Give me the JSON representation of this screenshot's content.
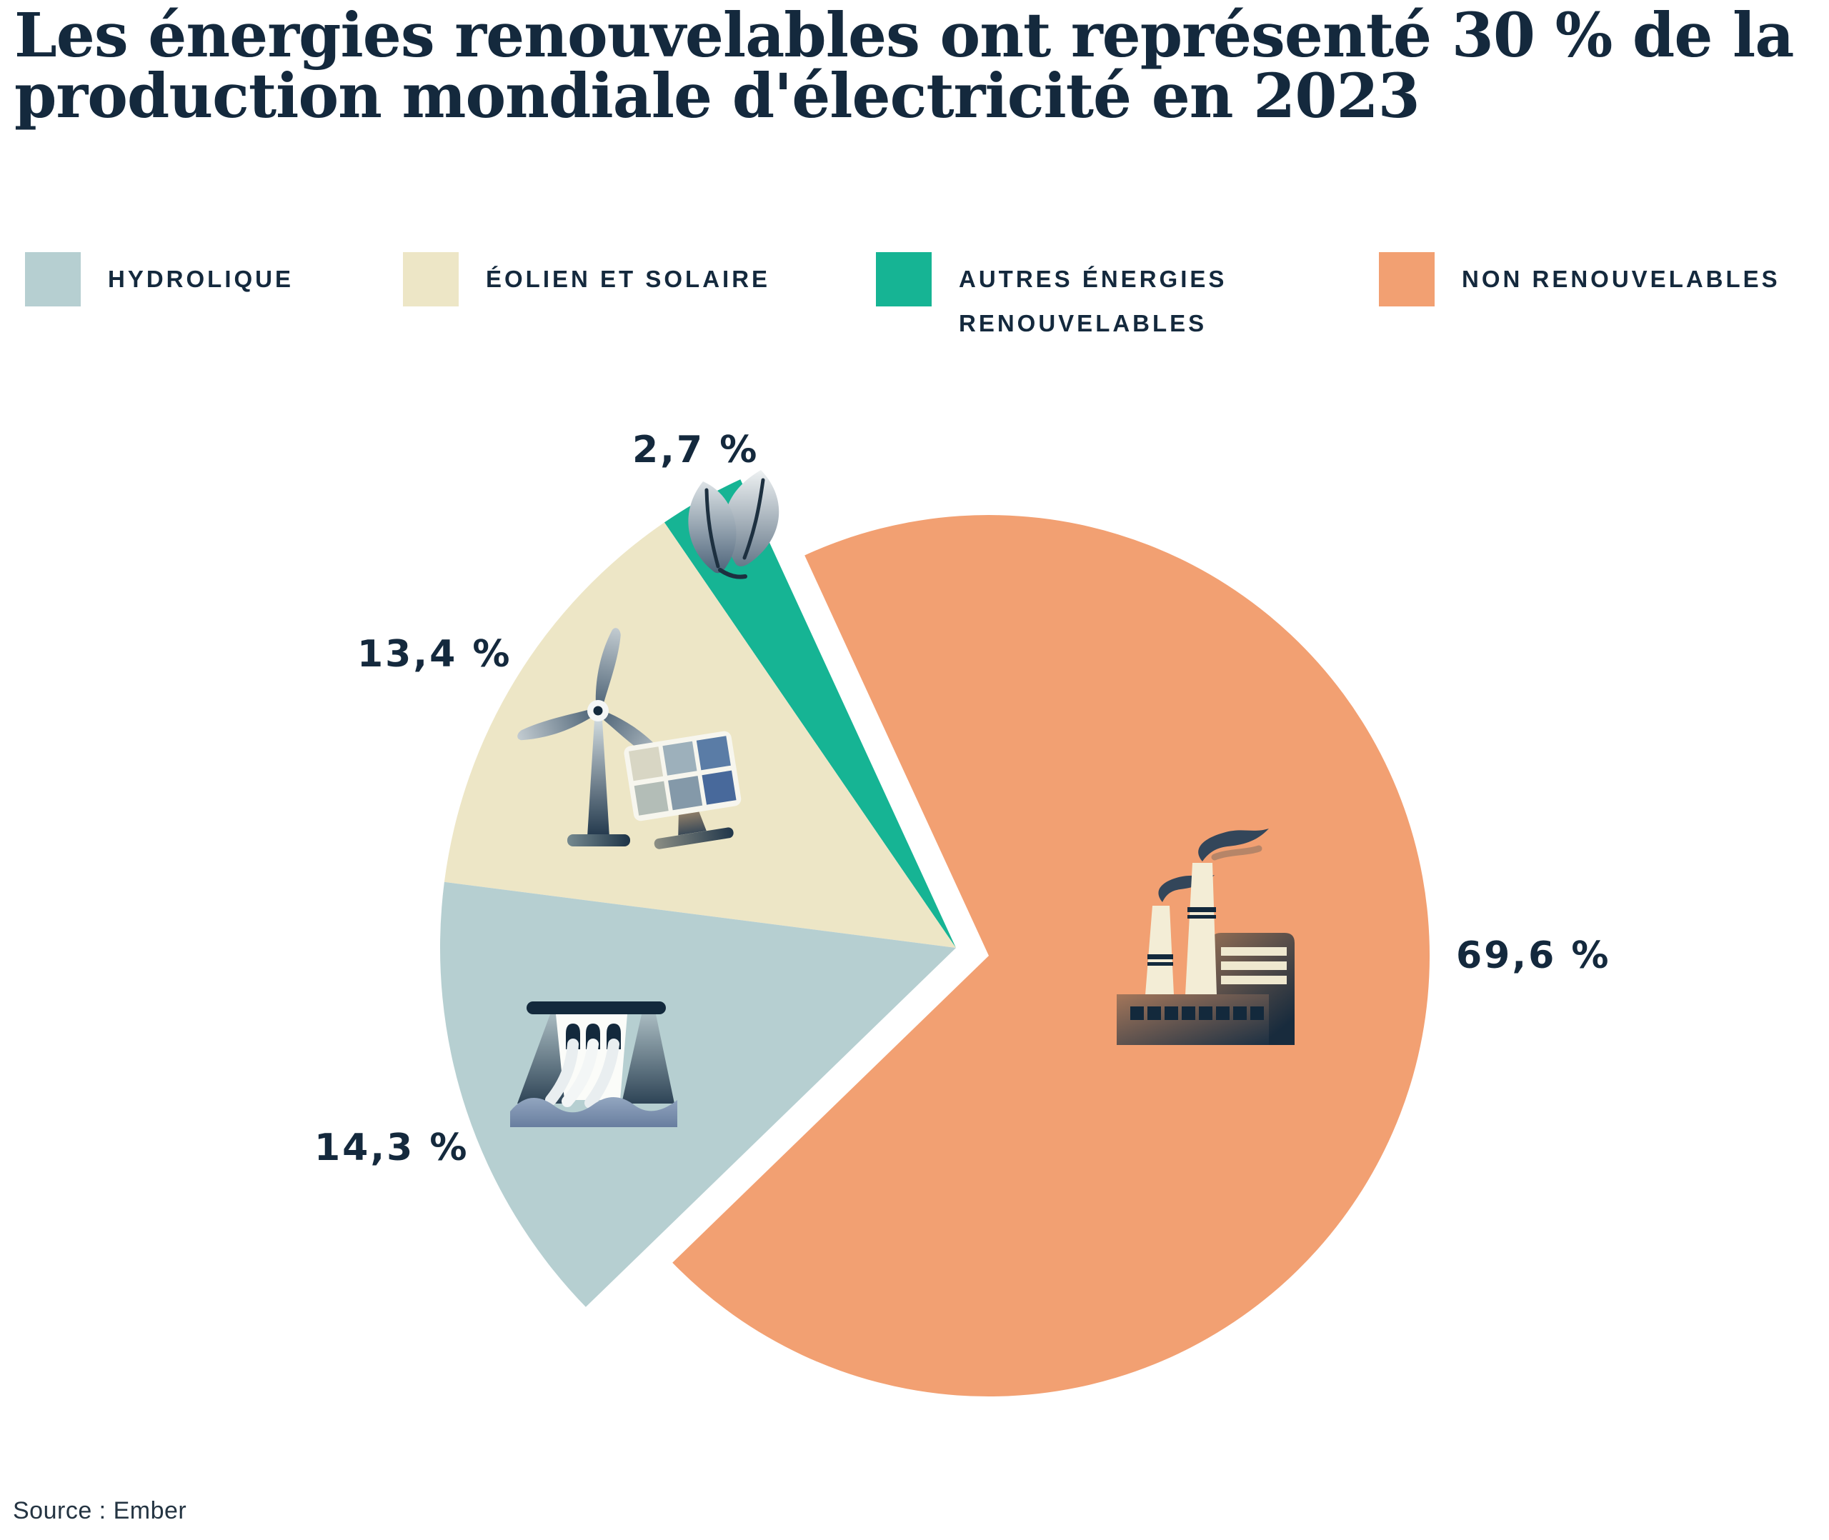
{
  "page": {
    "title_line1": "Les énergies renouvelables ont représenté 30 % de la",
    "title_line2": "production mondiale d'électricité en 2023",
    "source": "Source : Ember"
  },
  "colors": {
    "text": "#14293d",
    "background": "#ffffff",
    "hydro": "#b6cfd1",
    "wind_solar": "#ede6c6",
    "other_renewables": "#16b494",
    "non_renewables": "#f2a072"
  },
  "chart_data": {
    "type": "pie",
    "title": "Les énergies renouvelables ont représenté 30 % de la production mondiale d'électricité en 2023",
    "unit": "%",
    "source": "Ember",
    "renewables_total_pct": 30,
    "year": "2023",
    "segments": [
      {
        "id": "hydro",
        "label": "Hydrolique",
        "legend_label": "HYDROLIQUE",
        "value": 14.3,
        "display": "14,3 %",
        "color": "#b6cfd1",
        "icon": "dam-icon"
      },
      {
        "id": "wind_solar",
        "label": "Éolien et solaire",
        "legend_label": "ÉOLIEN ET SOLAIRE",
        "value": 13.4,
        "display": "13,4 %",
        "color": "#ede6c6",
        "icon": "wind-turbine-solar-panel-icon"
      },
      {
        "id": "other_renewables",
        "label": "Autres énergies renouvelables",
        "legend_label": "AUTRES ÉNERGIES RENOUVELABLES",
        "value": 2.7,
        "display": "2,7 %",
        "color": "#16b494",
        "icon": "leaf-icon"
      },
      {
        "id": "non_renewables",
        "label": "Non renouvelables",
        "legend_label": "NON RENOUVELABLES",
        "value": 69.6,
        "display": "69,6 %",
        "color": "#f2a072",
        "icon": "factory-icon"
      }
    ],
    "layout_hints": {
      "start_angle_deg": 114.7,
      "ccw_order": [
        "other_renewables",
        "wind_solar",
        "hydro"
      ],
      "exploded": "non_renewables",
      "legend_position": "top",
      "labels": "outside",
      "grid": false
    }
  }
}
